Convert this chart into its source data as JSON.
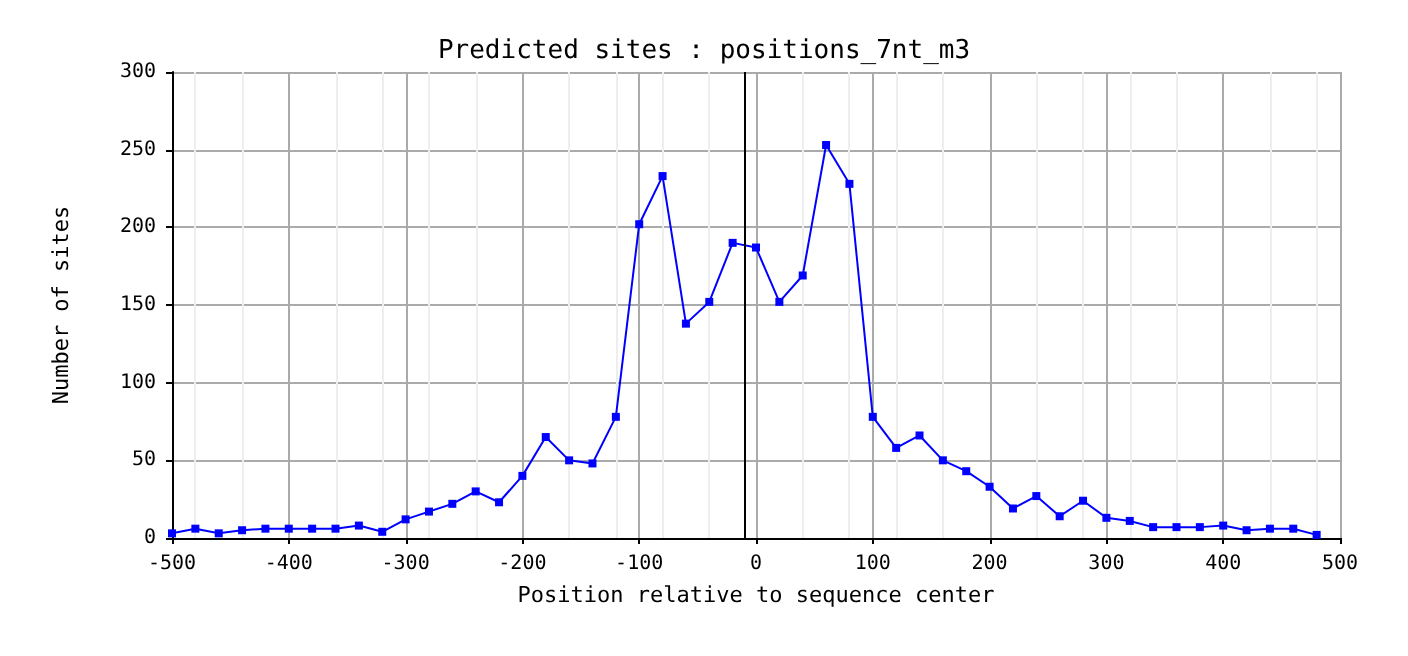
{
  "chart_data": {
    "type": "line",
    "title": "Predicted sites : positions_7nt_m3",
    "xlabel": "Position relative to sequence center",
    "ylabel": "Number of sites",
    "x": [
      -500,
      -480,
      -460,
      -440,
      -420,
      -400,
      -380,
      -360,
      -340,
      -320,
      -300,
      -280,
      -260,
      -240,
      -220,
      -200,
      -180,
      -160,
      -140,
      -120,
      -100,
      -80,
      -60,
      -40,
      -20,
      0,
      20,
      40,
      60,
      80,
      100,
      120,
      140,
      160,
      180,
      200,
      220,
      240,
      260,
      280,
      300,
      320,
      340,
      360,
      380,
      400,
      420,
      440,
      460,
      480
    ],
    "series": [
      {
        "color": "#0000ff",
        "values": [
          3,
          6,
          3,
          5,
          6,
          6,
          6,
          6,
          8,
          4,
          12,
          17,
          22,
          30,
          23,
          40,
          65,
          50,
          48,
          78,
          202,
          233,
          138,
          152,
          190,
          187,
          152,
          169,
          253,
          228,
          78,
          58,
          66,
          50,
          43,
          33,
          19,
          27,
          14,
          24,
          13,
          11,
          7,
          7,
          7,
          8,
          5,
          6,
          6,
          2
        ]
      }
    ],
    "xlim": [
      -500,
      500
    ],
    "xticks": [
      -500,
      -400,
      -300,
      -200,
      -100,
      0,
      100,
      200,
      300,
      400,
      500
    ],
    "ylim": [
      0,
      300
    ],
    "yticks": [
      0,
      50,
      100,
      150,
      200,
      250,
      300
    ],
    "ref_lines": [
      {
        "axis": "x",
        "value": -10,
        "color": "#000000"
      }
    ],
    "grid": true,
    "marker": "square",
    "line_style": "solid"
  }
}
